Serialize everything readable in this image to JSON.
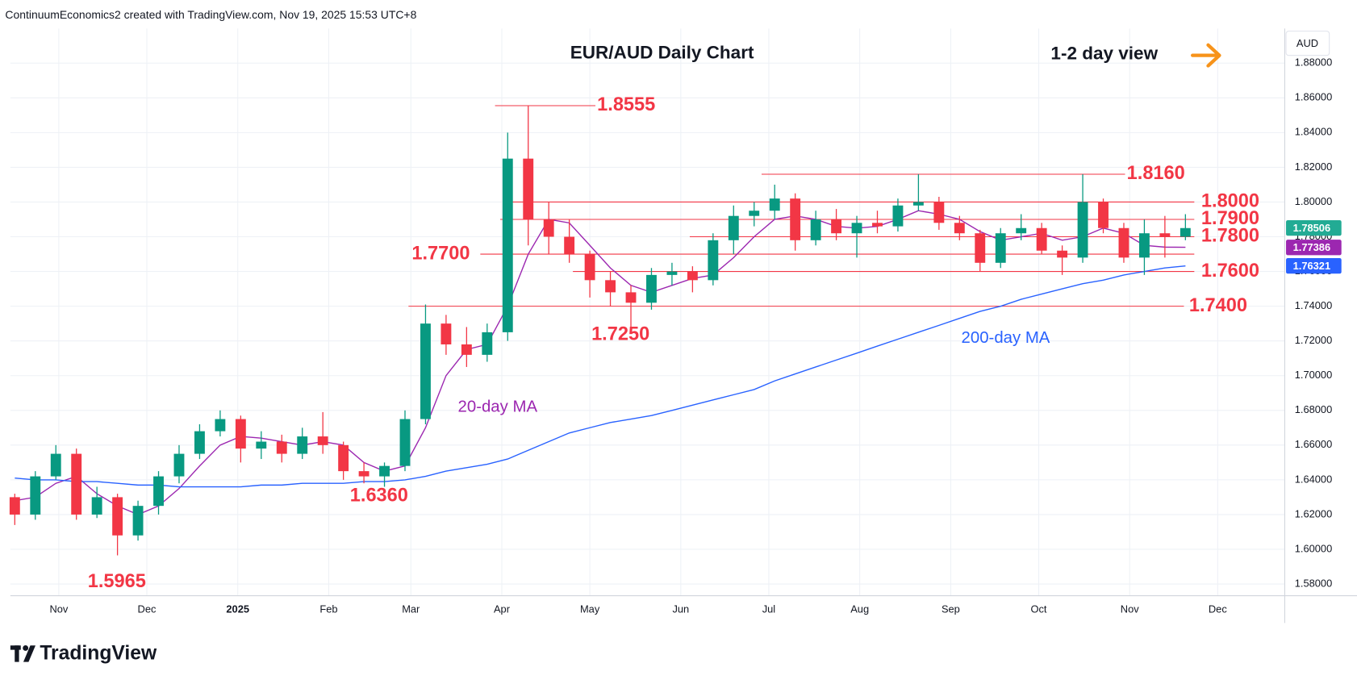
{
  "header": {
    "attribution": "ContinuumEconomics2 created with TradingView.com, Nov 19, 2025 15:53 UTC+8",
    "brand": "TradingView"
  },
  "chart_data": {
    "type": "candlestick",
    "title": "EUR/AUD Daily Chart",
    "view": "1-2 day view",
    "currency": "AUD",
    "x": [
      -15,
      -8,
      -1,
      6,
      13,
      20,
      27,
      34,
      41,
      48,
      55,
      62,
      69,
      76,
      83,
      90,
      97,
      104,
      111,
      118,
      125,
      132,
      139,
      146,
      153,
      160,
      167,
      174,
      181,
      188,
      195,
      202,
      209,
      216,
      223,
      230,
      237,
      244,
      251,
      258,
      265,
      272,
      279,
      286,
      293,
      300,
      307,
      314,
      321,
      328,
      335,
      342,
      349,
      356,
      363,
      370,
      377,
      384
    ],
    "open": [
      1.63,
      1.62,
      1.642,
      1.655,
      1.62,
      1.63,
      1.608,
      1.625,
      1.642,
      1.655,
      1.668,
      1.675,
      1.658,
      1.662,
      1.655,
      1.665,
      1.66,
      1.645,
      1.642,
      1.648,
      1.675,
      1.73,
      1.718,
      1.712,
      1.725,
      1.825,
      1.79,
      1.78,
      1.77,
      1.755,
      1.748,
      1.742,
      1.758,
      1.76,
      1.755,
      1.778,
      1.792,
      1.795,
      1.802,
      1.778,
      1.79,
      1.782,
      1.788,
      1.786,
      1.798,
      1.8,
      1.788,
      1.782,
      1.765,
      1.782,
      1.785,
      1.772,
      1.768,
      1.8,
      1.785,
      1.768,
      1.782,
      1.78
    ],
    "high": [
      1.632,
      1.645,
      1.66,
      1.658,
      1.636,
      1.632,
      1.628,
      1.645,
      1.66,
      1.672,
      1.68,
      1.677,
      1.668,
      1.666,
      1.67,
      1.679,
      1.662,
      1.65,
      1.65,
      1.68,
      1.741,
      1.735,
      1.728,
      1.73,
      1.84,
      1.8555,
      1.8,
      1.79,
      1.772,
      1.76,
      1.752,
      1.762,
      1.765,
      1.763,
      1.782,
      1.798,
      1.8,
      1.81,
      1.805,
      1.795,
      1.796,
      1.792,
      1.795,
      1.802,
      1.816,
      1.803,
      1.792,
      1.784,
      1.785,
      1.793,
      1.788,
      1.775,
      1.816,
      1.802,
      1.788,
      1.79,
      1.792,
      1.793
    ],
    "low": [
      1.614,
      1.617,
      1.64,
      1.617,
      1.618,
      1.5965,
      1.605,
      1.62,
      1.638,
      1.652,
      1.665,
      1.65,
      1.652,
      1.65,
      1.652,
      1.655,
      1.64,
      1.638,
      1.636,
      1.645,
      1.672,
      1.712,
      1.705,
      1.708,
      1.72,
      1.775,
      1.77,
      1.765,
      1.745,
      1.74,
      1.725,
      1.738,
      1.752,
      1.748,
      1.752,
      1.77,
      1.786,
      1.79,
      1.772,
      1.775,
      1.778,
      1.768,
      1.782,
      1.783,
      1.795,
      1.784,
      1.778,
      1.76,
      1.762,
      1.778,
      1.77,
      1.758,
      1.765,
      1.782,
      1.765,
      1.758,
      1.768,
      1.778
    ],
    "close": [
      1.62,
      1.642,
      1.655,
      1.62,
      1.63,
      1.608,
      1.625,
      1.642,
      1.655,
      1.668,
      1.675,
      1.658,
      1.662,
      1.655,
      1.665,
      1.66,
      1.645,
      1.642,
      1.648,
      1.675,
      1.73,
      1.718,
      1.712,
      1.725,
      1.825,
      1.79,
      1.78,
      1.77,
      1.755,
      1.748,
      1.742,
      1.758,
      1.76,
      1.755,
      1.778,
      1.792,
      1.795,
      1.802,
      1.778,
      1.79,
      1.782,
      1.788,
      1.786,
      1.798,
      1.8,
      1.788,
      1.782,
      1.765,
      1.782,
      1.785,
      1.772,
      1.768,
      1.8,
      1.785,
      1.768,
      1.782,
      1.78,
      1.785
    ],
    "up_color": "#089981",
    "down_color": "#f23645",
    "series": [
      {
        "name": "20-day MA",
        "color": "#9c27b0",
        "values": [
          1.628,
          1.63,
          1.638,
          1.642,
          1.632,
          1.625,
          1.62,
          1.625,
          1.635,
          1.648,
          1.66,
          1.665,
          1.664,
          1.662,
          1.66,
          1.662,
          1.66,
          1.65,
          1.645,
          1.648,
          1.67,
          1.7,
          1.715,
          1.718,
          1.74,
          1.77,
          1.79,
          1.788,
          1.775,
          1.762,
          1.752,
          1.748,
          1.752,
          1.756,
          1.758,
          1.768,
          1.78,
          1.79,
          1.792,
          1.79,
          1.786,
          1.785,
          1.786,
          1.79,
          1.795,
          1.793,
          1.79,
          1.783,
          1.778,
          1.78,
          1.782,
          1.778,
          1.78,
          1.785,
          1.782,
          1.775,
          1.774,
          1.7739
        ]
      },
      {
        "name": "200-day MA",
        "color": "#2962ff",
        "values": [
          1.641,
          1.64,
          1.64,
          1.639,
          1.639,
          1.638,
          1.637,
          1.637,
          1.636,
          1.636,
          1.636,
          1.636,
          1.637,
          1.637,
          1.638,
          1.638,
          1.638,
          1.639,
          1.639,
          1.64,
          1.642,
          1.645,
          1.647,
          1.649,
          1.652,
          1.657,
          1.662,
          1.667,
          1.67,
          1.673,
          1.675,
          1.677,
          1.68,
          1.683,
          1.686,
          1.689,
          1.692,
          1.697,
          1.701,
          1.705,
          1.709,
          1.713,
          1.717,
          1.721,
          1.725,
          1.729,
          1.733,
          1.737,
          1.74,
          1.744,
          1.747,
          1.75,
          1.753,
          1.755,
          1.758,
          1.76,
          1.762,
          1.7632
        ]
      }
    ],
    "xlim": [
      -16.5,
      417.7
    ],
    "xticks": [
      {
        "value": 0,
        "label": "Nov"
      },
      {
        "value": 30,
        "label": "Dec"
      },
      {
        "value": 61,
        "label": "2025"
      },
      {
        "value": 92,
        "label": "Feb"
      },
      {
        "value": 120,
        "label": "Mar"
      },
      {
        "value": 151,
        "label": "Apr"
      },
      {
        "value": 181,
        "label": "May"
      },
      {
        "value": 212,
        "label": "Jun"
      },
      {
        "value": 242,
        "label": "Jul"
      },
      {
        "value": 273,
        "label": "Aug"
      },
      {
        "value": 304,
        "label": "Sep"
      },
      {
        "value": 334,
        "label": "Oct"
      },
      {
        "value": 365,
        "label": "Nov"
      },
      {
        "value": 395,
        "label": "Dec"
      }
    ],
    "ylim": [
      1.5735,
      1.8999
    ],
    "yticks": [
      {
        "value": 1.58,
        "label": "1.58000"
      },
      {
        "value": 1.6,
        "label": "1.60000"
      },
      {
        "value": 1.62,
        "label": "1.62000"
      },
      {
        "value": 1.64,
        "label": "1.64000"
      },
      {
        "value": 1.66,
        "label": "1.66000"
      },
      {
        "value": 1.68,
        "label": "1.68000"
      },
      {
        "value": 1.7,
        "label": "1.70000"
      },
      {
        "value": 1.72,
        "label": "1.72000"
      },
      {
        "value": 1.74,
        "label": "1.74000"
      },
      {
        "value": 1.76,
        "label": "1.76000"
      },
      {
        "value": 1.78,
        "label": "1.78000"
      },
      {
        "value": 1.8,
        "label": "1.80000"
      },
      {
        "value": 1.82,
        "label": "1.82000"
      },
      {
        "value": 1.84,
        "label": "1.84000"
      },
      {
        "value": 1.86,
        "label": "1.86000"
      },
      {
        "value": 1.88,
        "label": "1.88000"
      }
    ],
    "grid": true,
    "levels": [
      {
        "value": 1.8555,
        "label": "1.8555"
      },
      {
        "value": 1.816,
        "label": "1.8160"
      },
      {
        "value": 1.8,
        "label": "1.8000"
      },
      {
        "value": 1.79,
        "label": "1.7900"
      },
      {
        "value": 1.78,
        "label": "1.7800"
      },
      {
        "value": 1.77,
        "label": "1.7700"
      },
      {
        "value": 1.76,
        "label": "1.7600"
      },
      {
        "value": 1.74,
        "label": "1.7400"
      }
    ],
    "annotations": [
      {
        "value": 1.725,
        "label": "1.7250"
      },
      {
        "value": 1.636,
        "label": "1.6360"
      },
      {
        "value": 1.5965,
        "label": "1.5965"
      }
    ],
    "price_tags": [
      {
        "value": 1.78506,
        "label": "1.78506",
        "color": "#22ab94"
      },
      {
        "value": 1.77386,
        "label": "1.77386",
        "color": "#9c27b0"
      },
      {
        "value": 1.76321,
        "label": "1.76321",
        "color": "#2962ff"
      }
    ]
  }
}
